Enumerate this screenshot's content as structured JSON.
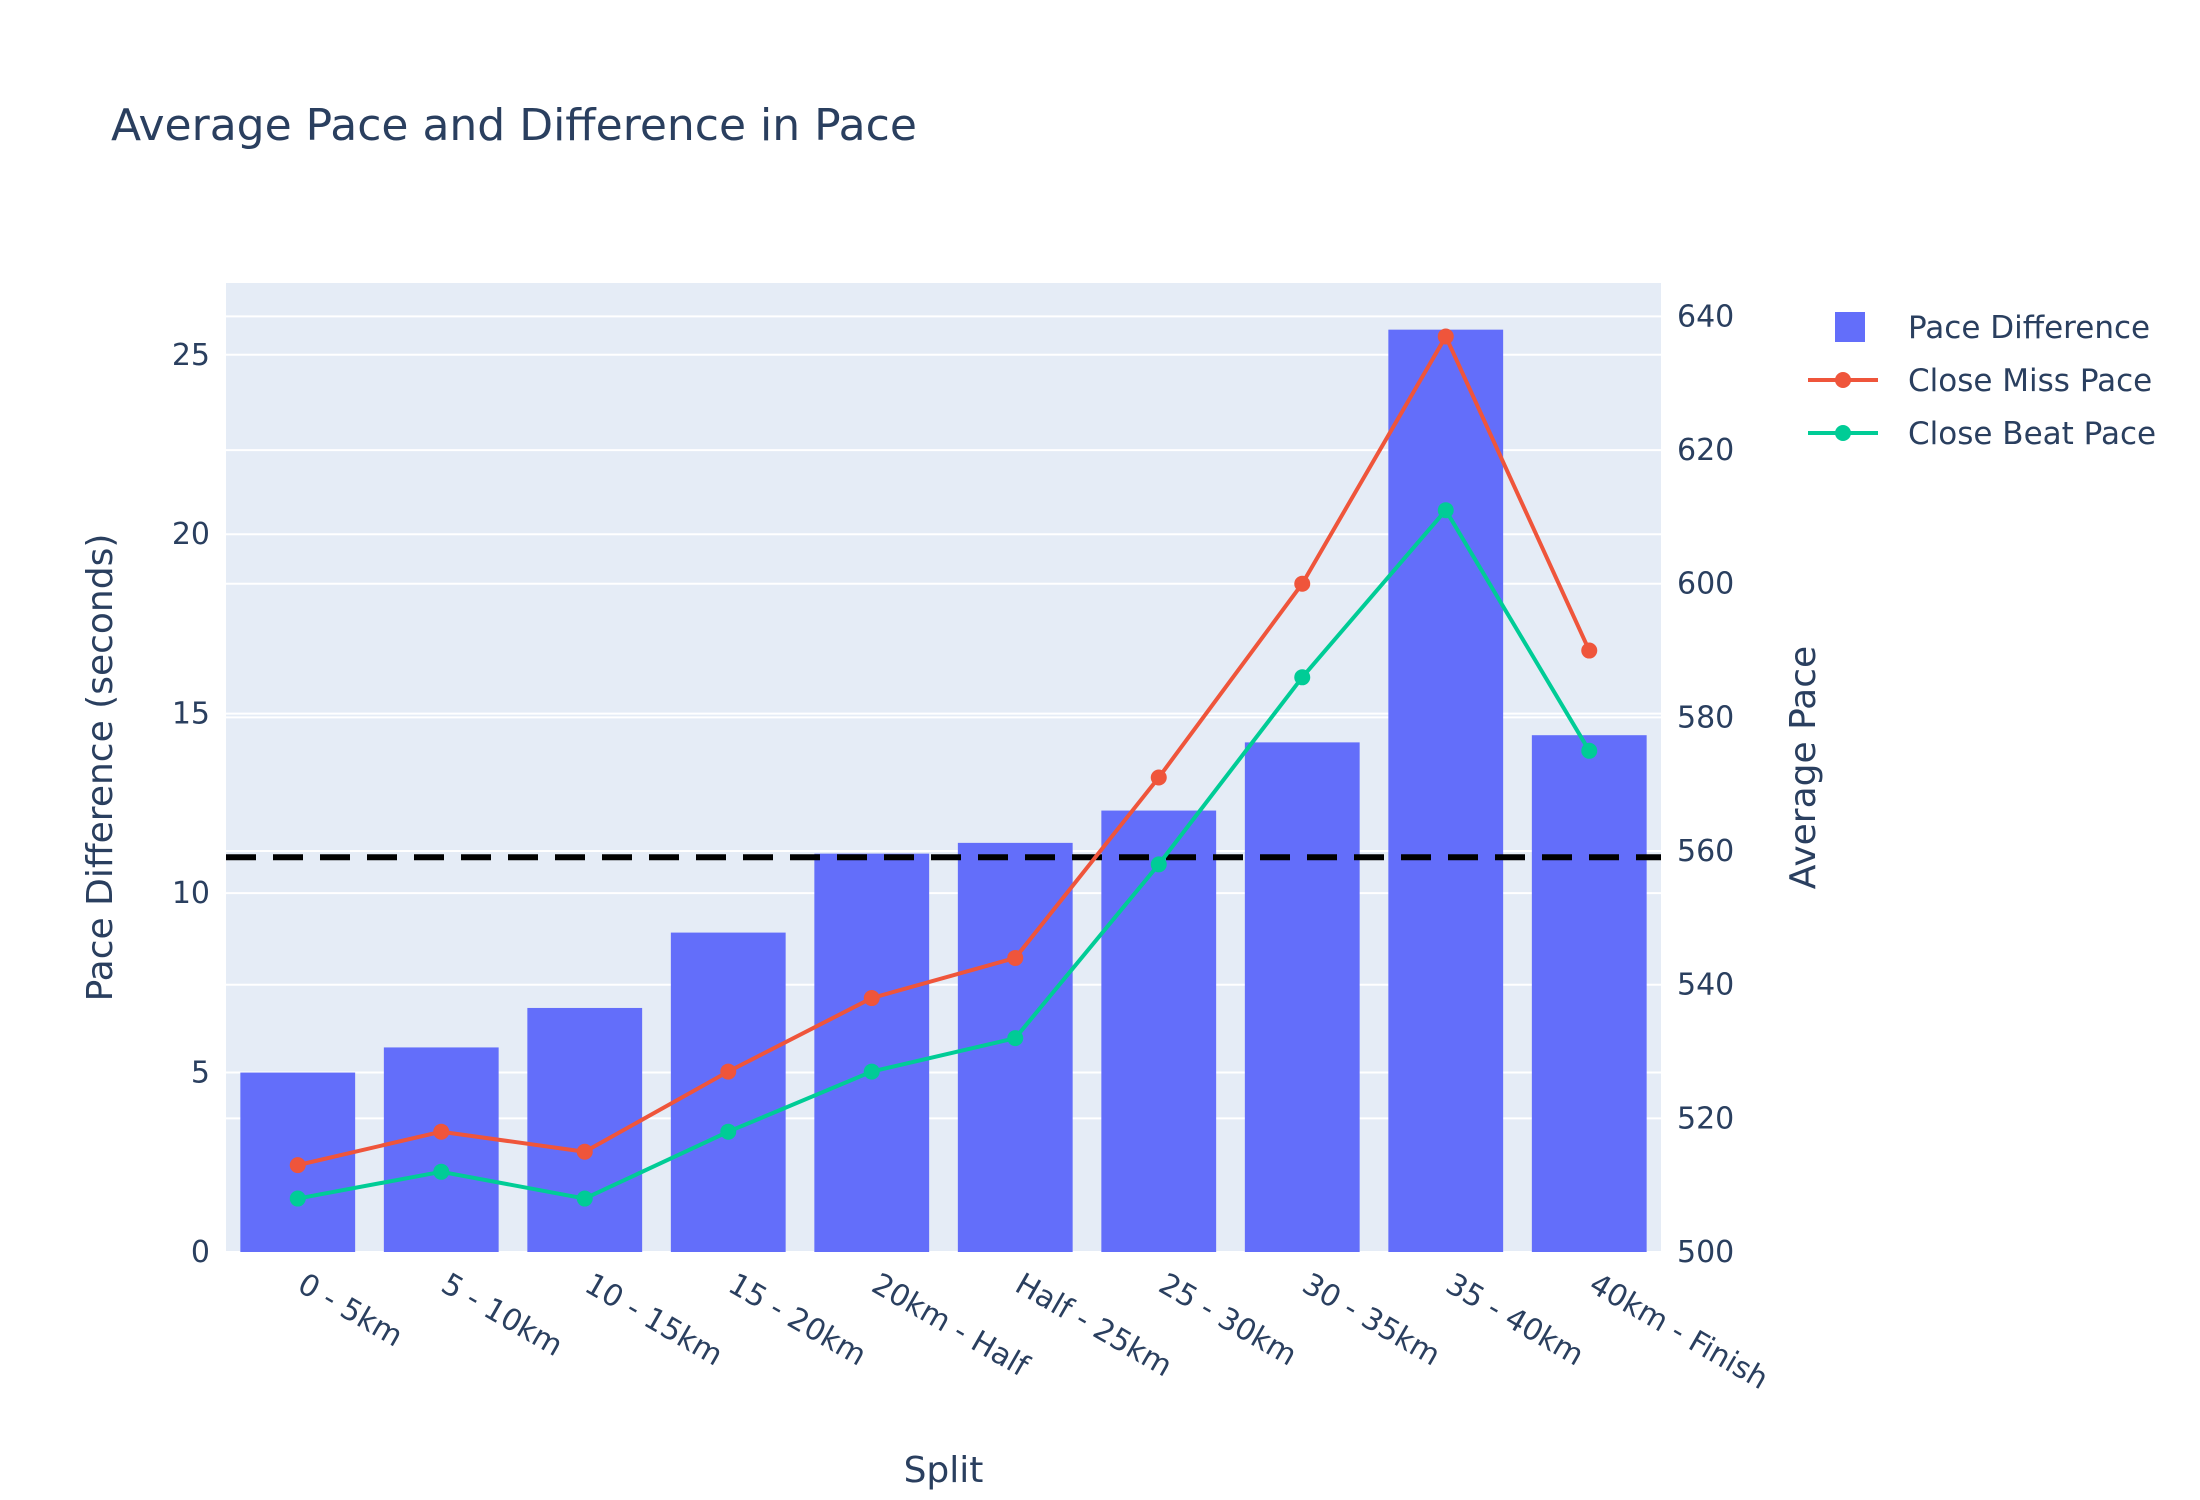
{
  "chart_data": {
    "type": "bar+line",
    "title": "Average Pace and Difference in Pace",
    "xlabel": "Split",
    "ylabel_left": "Pace Difference (seconds)",
    "ylabel_right": "Average Pace",
    "categories": [
      "0 - 5km",
      "5 - 10km",
      "10 - 15km",
      "15 - 20km",
      "20km - Half",
      "Half - 25km",
      "25 - 30km",
      "30 - 35km",
      "35 - 40km",
      "40km - Finish"
    ],
    "ylim_left": [
      0,
      27
    ],
    "ylim_right": [
      500,
      645
    ],
    "yticks_left": [
      0,
      5,
      10,
      15,
      20,
      25
    ],
    "yticks_right": [
      500,
      520,
      540,
      560,
      580,
      600,
      620,
      640
    ],
    "series": [
      {
        "name": "Pace Difference",
        "type": "bar",
        "axis": "left",
        "color": "#636efa",
        "values": [
          5.0,
          5.7,
          6.8,
          8.9,
          11.1,
          11.4,
          12.3,
          14.2,
          25.7,
          14.4
        ]
      },
      {
        "name": "Close Miss Pace",
        "type": "line",
        "axis": "right",
        "color": "#ef553b",
        "values": [
          513,
          518,
          515,
          527,
          538,
          544,
          571,
          600,
          637,
          590
        ]
      },
      {
        "name": "Close Beat Pace",
        "type": "line",
        "axis": "right",
        "color": "#00cc96",
        "values": [
          508,
          512,
          508,
          518,
          527,
          532,
          558,
          586,
          611,
          575
        ]
      }
    ],
    "reference_line": {
      "axis": "left",
      "value": 11.0,
      "style": "dashed",
      "color": "#000000"
    },
    "grid": true,
    "legend_position": "top-right",
    "plot_bgcolor": "#e5ecf6"
  }
}
